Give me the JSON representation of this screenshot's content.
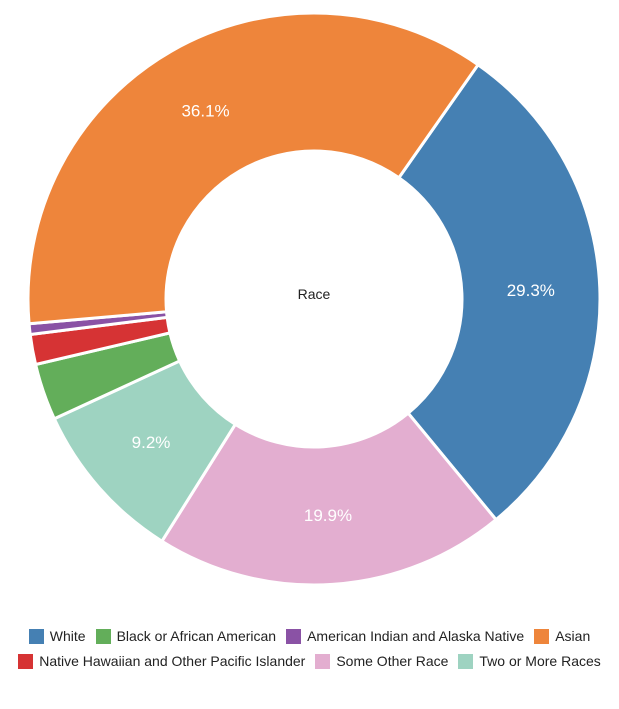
{
  "chart_data": {
    "type": "pie",
    "style": "donut",
    "center_label": "Race",
    "legend_position": "bottom",
    "categories": [
      "White",
      "Black or African American",
      "American Indian and Alaska Native",
      "Asian",
      "Native Hawaiian and Other Pacific Islander",
      "Some Other Race",
      "Two or More Races"
    ],
    "values": [
      29.3,
      3.2,
      0.6,
      36.1,
      1.7,
      19.9,
      9.2
    ],
    "labels": [
      "29.3%",
      "",
      "",
      "36.1%",
      "",
      "19.9%",
      "9.2%"
    ],
    "colors": [
      "#4580b3",
      "#63ae5a",
      "#8a52a5",
      "#ee853b",
      "#d63334",
      "#e3aed0",
      "#9ed3c1"
    ],
    "draw_order": [
      "White",
      "Some Other Race",
      "Two or More Races",
      "Black or African American",
      "Native Hawaiian and Other Pacific Islander",
      "American Indian and Alaska Native",
      "Asian"
    ]
  }
}
